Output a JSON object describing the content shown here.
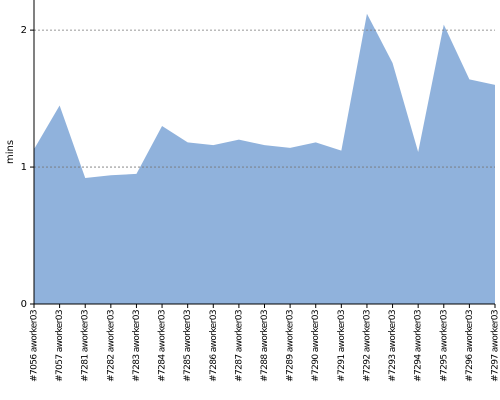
{
  "chart_data": {
    "type": "area",
    "y_label": "mins",
    "categories": [
      "#7056 aworker03",
      "#7057 aworker03",
      "#7281 aworker03",
      "#7282 aworker03",
      "#7283 aworker03",
      "#7284 aworker03",
      "#7285 aworker03",
      "#7286 aworker03",
      "#7287 aworker03",
      "#7288 aworker03",
      "#7289 aworker03",
      "#7290 aworker03",
      "#7291 aworker03",
      "#7292 aworker03",
      "#7293 aworker03",
      "#7294 aworker03",
      "#7295 aworker03",
      "#7296 aworker03",
      "#7297 aworker03"
    ],
    "values": [
      1.13,
      1.45,
      0.92,
      0.94,
      0.95,
      1.3,
      1.18,
      1.16,
      1.2,
      1.16,
      1.14,
      1.18,
      1.12,
      2.12,
      1.76,
      1.11,
      2.04,
      1.64,
      1.6
    ],
    "color": "#90b2dc",
    "ylim": [
      0,
      2.22
    ],
    "yticks": [
      0,
      1,
      2
    ],
    "grid": true
  }
}
